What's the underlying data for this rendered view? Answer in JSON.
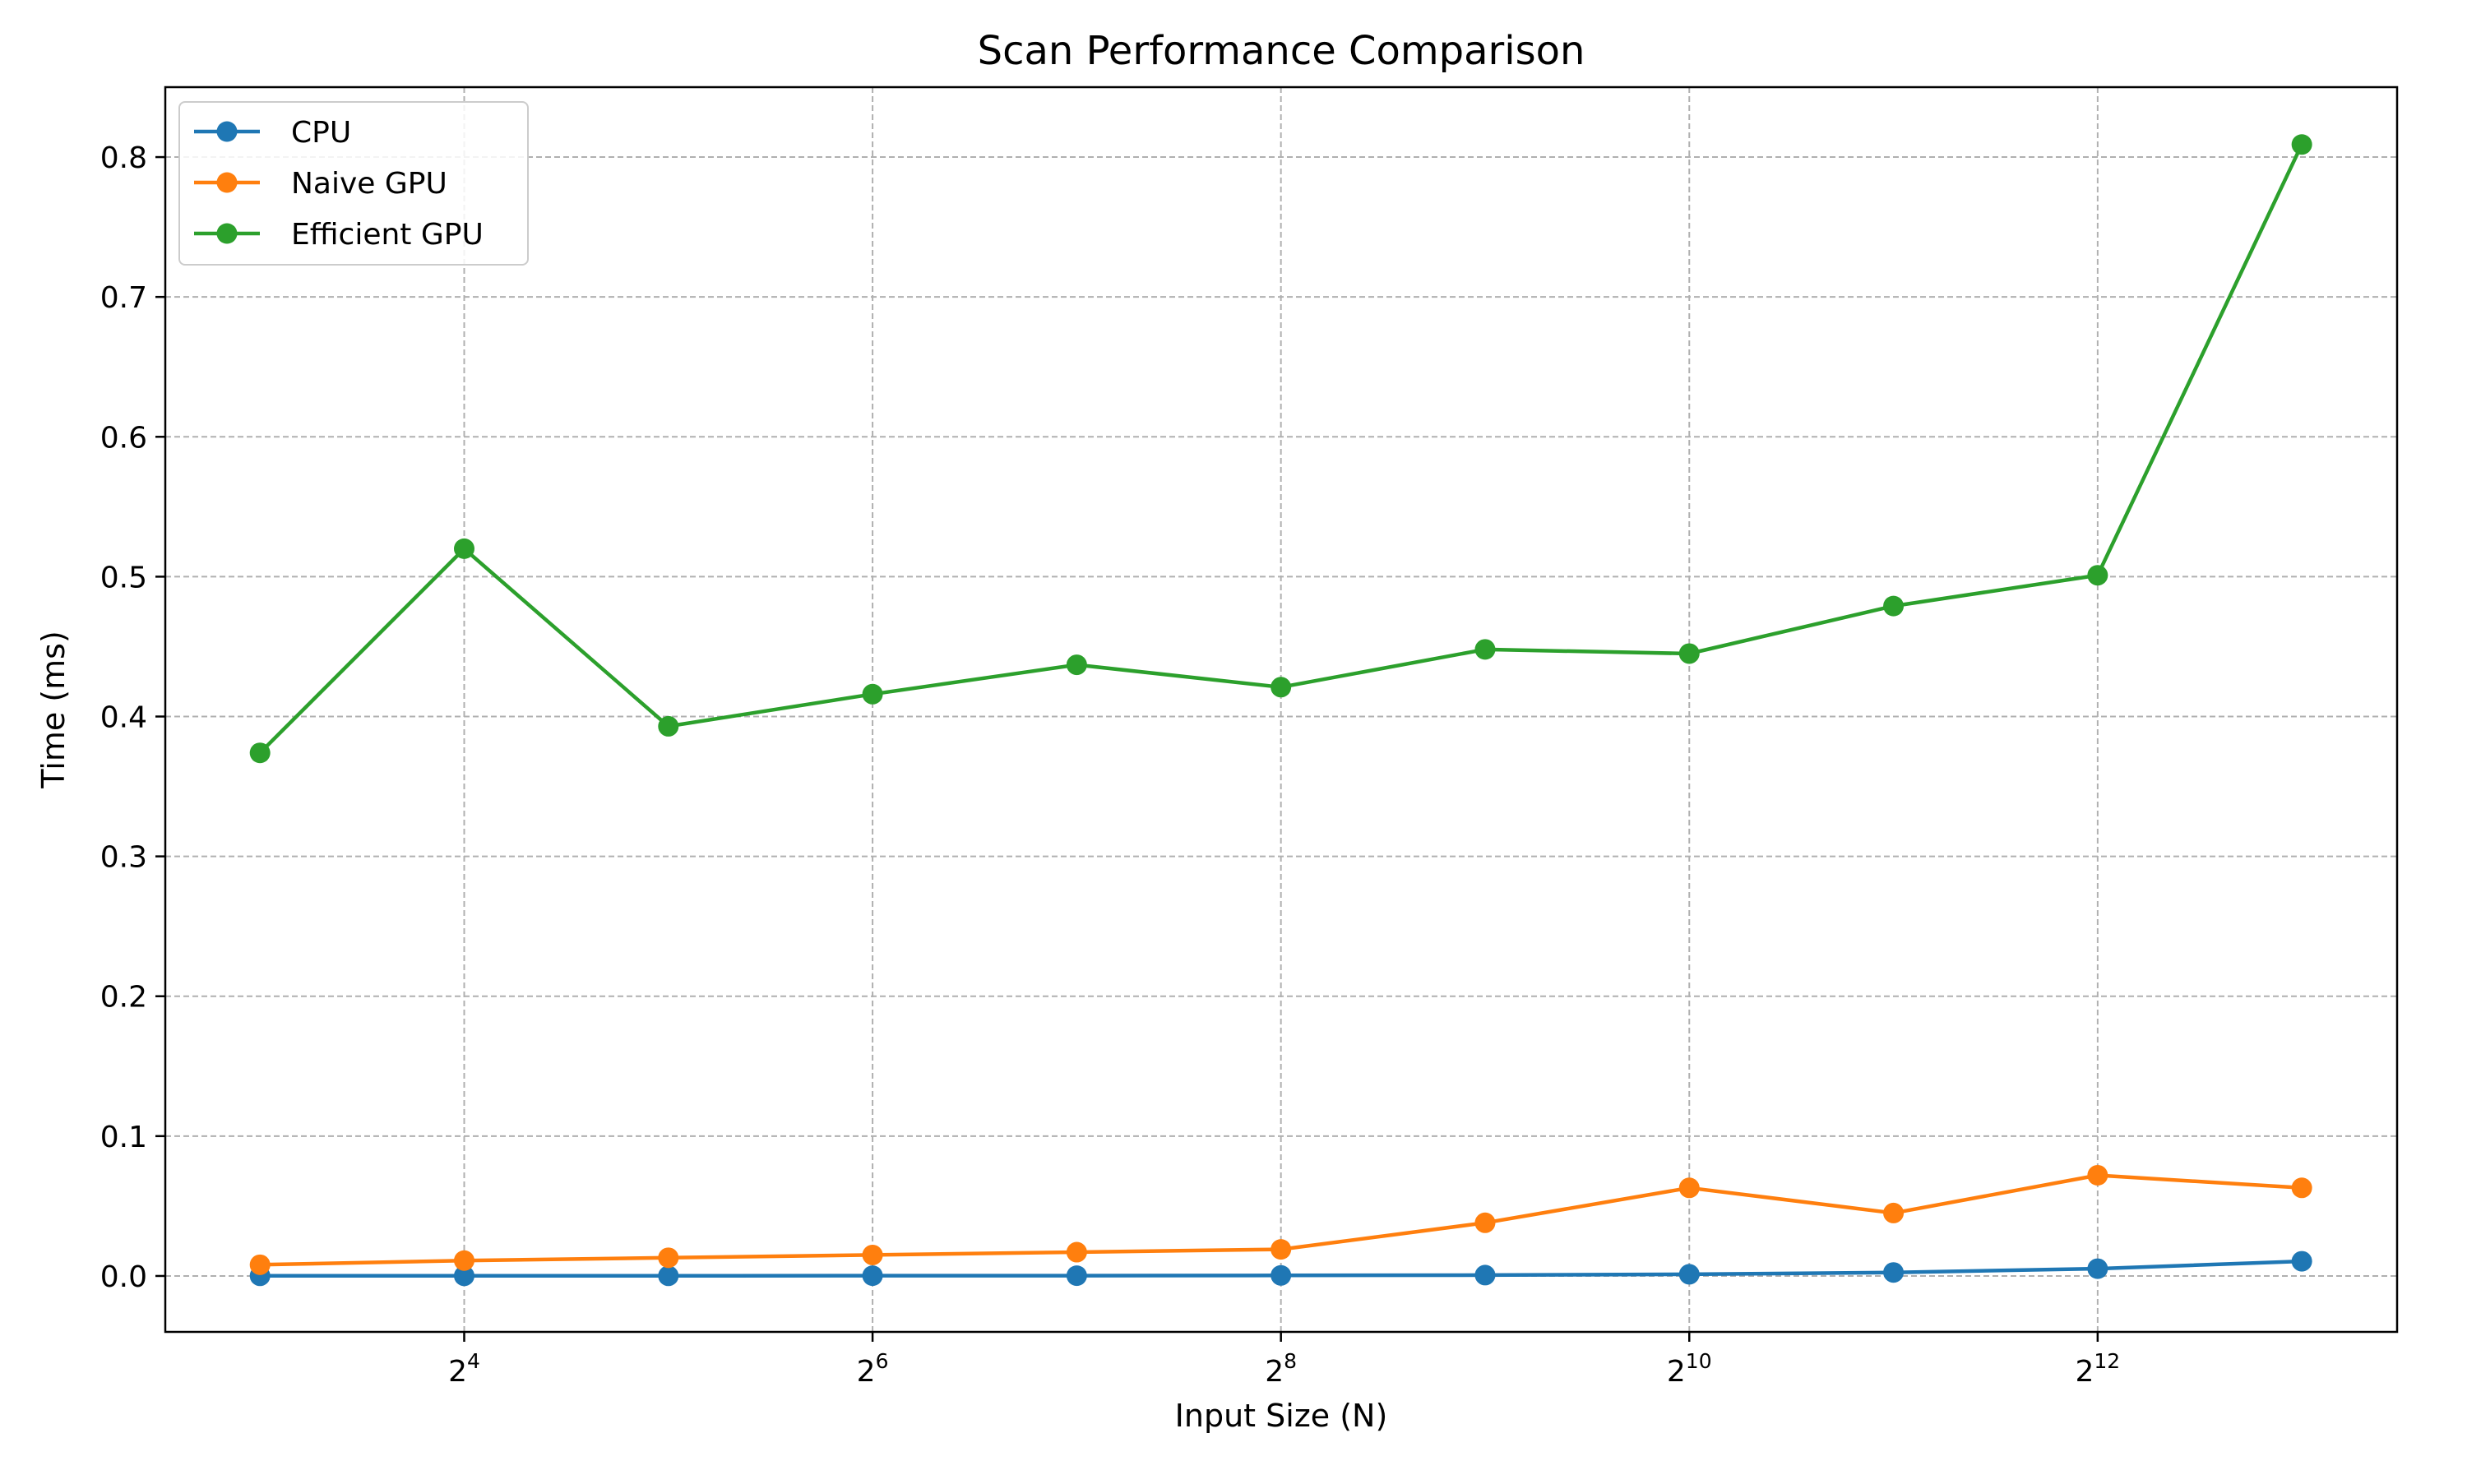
{
  "chart_data": {
    "type": "line",
    "title": "Scan Performance Comparison",
    "xlabel": "Input Size (N)",
    "ylabel": "Time (ms)",
    "x_scale": "log2",
    "x": [
      8,
      16,
      32,
      64,
      128,
      256,
      512,
      1024,
      2048,
      4096,
      8192
    ],
    "xlim": [
      5.8,
      11320
    ],
    "ylim": [
      -0.04,
      0.85
    ],
    "x_ticks": [
      {
        "value": 16,
        "base": "2",
        "exp": "4"
      },
      {
        "value": 64,
        "base": "2",
        "exp": "6"
      },
      {
        "value": 256,
        "base": "2",
        "exp": "8"
      },
      {
        "value": 1024,
        "base": "2",
        "exp": "10"
      },
      {
        "value": 4096,
        "base": "2",
        "exp": "12"
      }
    ],
    "y_ticks": [
      {
        "value": 0.0,
        "label": "0.0"
      },
      {
        "value": 0.1,
        "label": "0.1"
      },
      {
        "value": 0.2,
        "label": "0.2"
      },
      {
        "value": 0.3,
        "label": "0.3"
      },
      {
        "value": 0.4,
        "label": "0.4"
      },
      {
        "value": 0.5,
        "label": "0.5"
      },
      {
        "value": 0.6,
        "label": "0.6"
      },
      {
        "value": 0.7,
        "label": "0.7"
      },
      {
        "value": 0.8,
        "label": "0.8"
      }
    ],
    "grid": true,
    "legend_position": "top-left",
    "series": [
      {
        "name": "CPU",
        "color": "#1f77b4",
        "values": [
          0.0001,
          0.0001,
          0.0001,
          0.0002,
          0.0002,
          0.0004,
          0.0006,
          0.0012,
          0.0025,
          0.0052,
          0.0105
        ]
      },
      {
        "name": "Naive GPU",
        "color": "#ff7f0e",
        "values": [
          0.008,
          0.011,
          0.013,
          0.015,
          0.017,
          0.019,
          0.038,
          0.063,
          0.045,
          0.072,
          0.063
        ]
      },
      {
        "name": "Efficient GPU",
        "color": "#2ca02c",
        "values": [
          0.374,
          0.52,
          0.393,
          0.416,
          0.437,
          0.421,
          0.448,
          0.445,
          0.479,
          0.501,
          0.809
        ]
      }
    ]
  }
}
